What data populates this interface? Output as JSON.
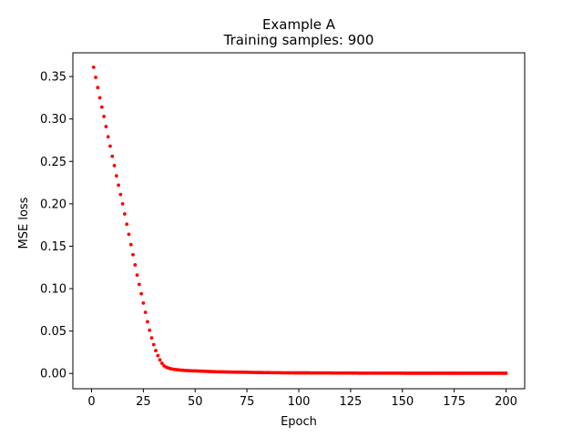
{
  "chart_data": {
    "type": "scatter",
    "title": "Example A",
    "subtitle": "Training samples: 900",
    "xlabel": "Epoch",
    "ylabel": "MSE loss",
    "xlim": [
      -9,
      209
    ],
    "ylim": [
      -0.018,
      0.378
    ],
    "xticks": [
      0,
      25,
      50,
      75,
      100,
      125,
      150,
      175,
      200
    ],
    "yticks": [
      0.0,
      0.05,
      0.1,
      0.15,
      0.2,
      0.25,
      0.3,
      0.35
    ],
    "ytick_labels": [
      "0.00",
      "0.05",
      "0.10",
      "0.15",
      "0.20",
      "0.25",
      "0.30",
      "0.35"
    ],
    "grid": false,
    "marker_color": "#ff0000",
    "series": [
      {
        "x_start": 1,
        "x_end": 200,
        "x_step": 1,
        "y": [
          0.361,
          0.349,
          0.337,
          0.325,
          0.314,
          0.303,
          0.291,
          0.279,
          0.268,
          0.256,
          0.245,
          0.233,
          0.222,
          0.211,
          0.2,
          0.188,
          0.176,
          0.164,
          0.152,
          0.14,
          0.128,
          0.116,
          0.105,
          0.094,
          0.083,
          0.072,
          0.061,
          0.051,
          0.042,
          0.034,
          0.027,
          0.021,
          0.016,
          0.012,
          0.009,
          0.0075,
          0.0065,
          0.0057,
          0.0052,
          0.0048,
          0.0045,
          0.0042,
          0.004,
          0.0038,
          0.0036,
          0.0034,
          0.0033,
          0.0032,
          0.0031,
          0.003,
          0.0029,
          0.0028,
          0.0027,
          0.0026,
          0.0025,
          0.0024,
          0.0023,
          0.0022,
          0.0021,
          0.002,
          0.002,
          0.0019,
          0.0019,
          0.0018,
          0.0018,
          0.0017,
          0.0017,
          0.0016,
          0.0016,
          0.0015,
          0.0015,
          0.0015,
          0.0014,
          0.0014,
          0.0014,
          0.0013,
          0.0013,
          0.0012,
          0.0012,
          0.0011,
          0.0011,
          0.0011,
          0.001,
          0.001,
          0.001,
          0.001,
          0.0009,
          0.0009,
          0.0009,
          0.0009,
          0.0009,
          0.0008,
          0.0008,
          0.0008,
          0.0008,
          0.0008,
          0.0008,
          0.0007,
          0.0007,
          0.0007,
          0.0007,
          0.0007,
          0.0007,
          0.0007,
          0.0007,
          0.0006,
          0.0006,
          0.0006,
          0.0006,
          0.0006,
          0.0006,
          0.0006,
          0.0006,
          0.0006,
          0.0006,
          0.0005,
          0.0005,
          0.0005,
          0.0005,
          0.0005,
          0.0005,
          0.0005,
          0.0005,
          0.0005,
          0.0005,
          0.0005,
          0.0005,
          0.0005,
          0.0004,
          0.0004,
          0.0004,
          0.0004,
          0.0004,
          0.0004,
          0.0004,
          0.0004,
          0.0004,
          0.0004,
          0.0004,
          0.0004,
          0.0004,
          0.0004,
          0.0004,
          0.0004,
          0.0004,
          0.0004,
          0.0004,
          0.0004,
          0.0004,
          0.0004,
          0.0003,
          0.0003,
          0.0003,
          0.0003,
          0.0003,
          0.0003,
          0.0003,
          0.0003,
          0.0003,
          0.0003,
          0.0003,
          0.0003,
          0.0003,
          0.0003,
          0.0003,
          0.0003,
          0.0003,
          0.0003,
          0.0003,
          0.0003,
          0.0003,
          0.0003,
          0.0003,
          0.0003,
          0.0003,
          0.0003,
          0.0003,
          0.0003,
          0.0003,
          0.0003,
          0.0003,
          0.0003,
          0.0003,
          0.0003,
          0.0003,
          0.0003,
          0.0003,
          0.0003,
          0.0003,
          0.0003,
          0.0003,
          0.0003,
          0.0003,
          0.0003,
          0.0003,
          0.0003,
          0.0003,
          0.0003,
          0.0003,
          0.0003
        ]
      }
    ]
  }
}
